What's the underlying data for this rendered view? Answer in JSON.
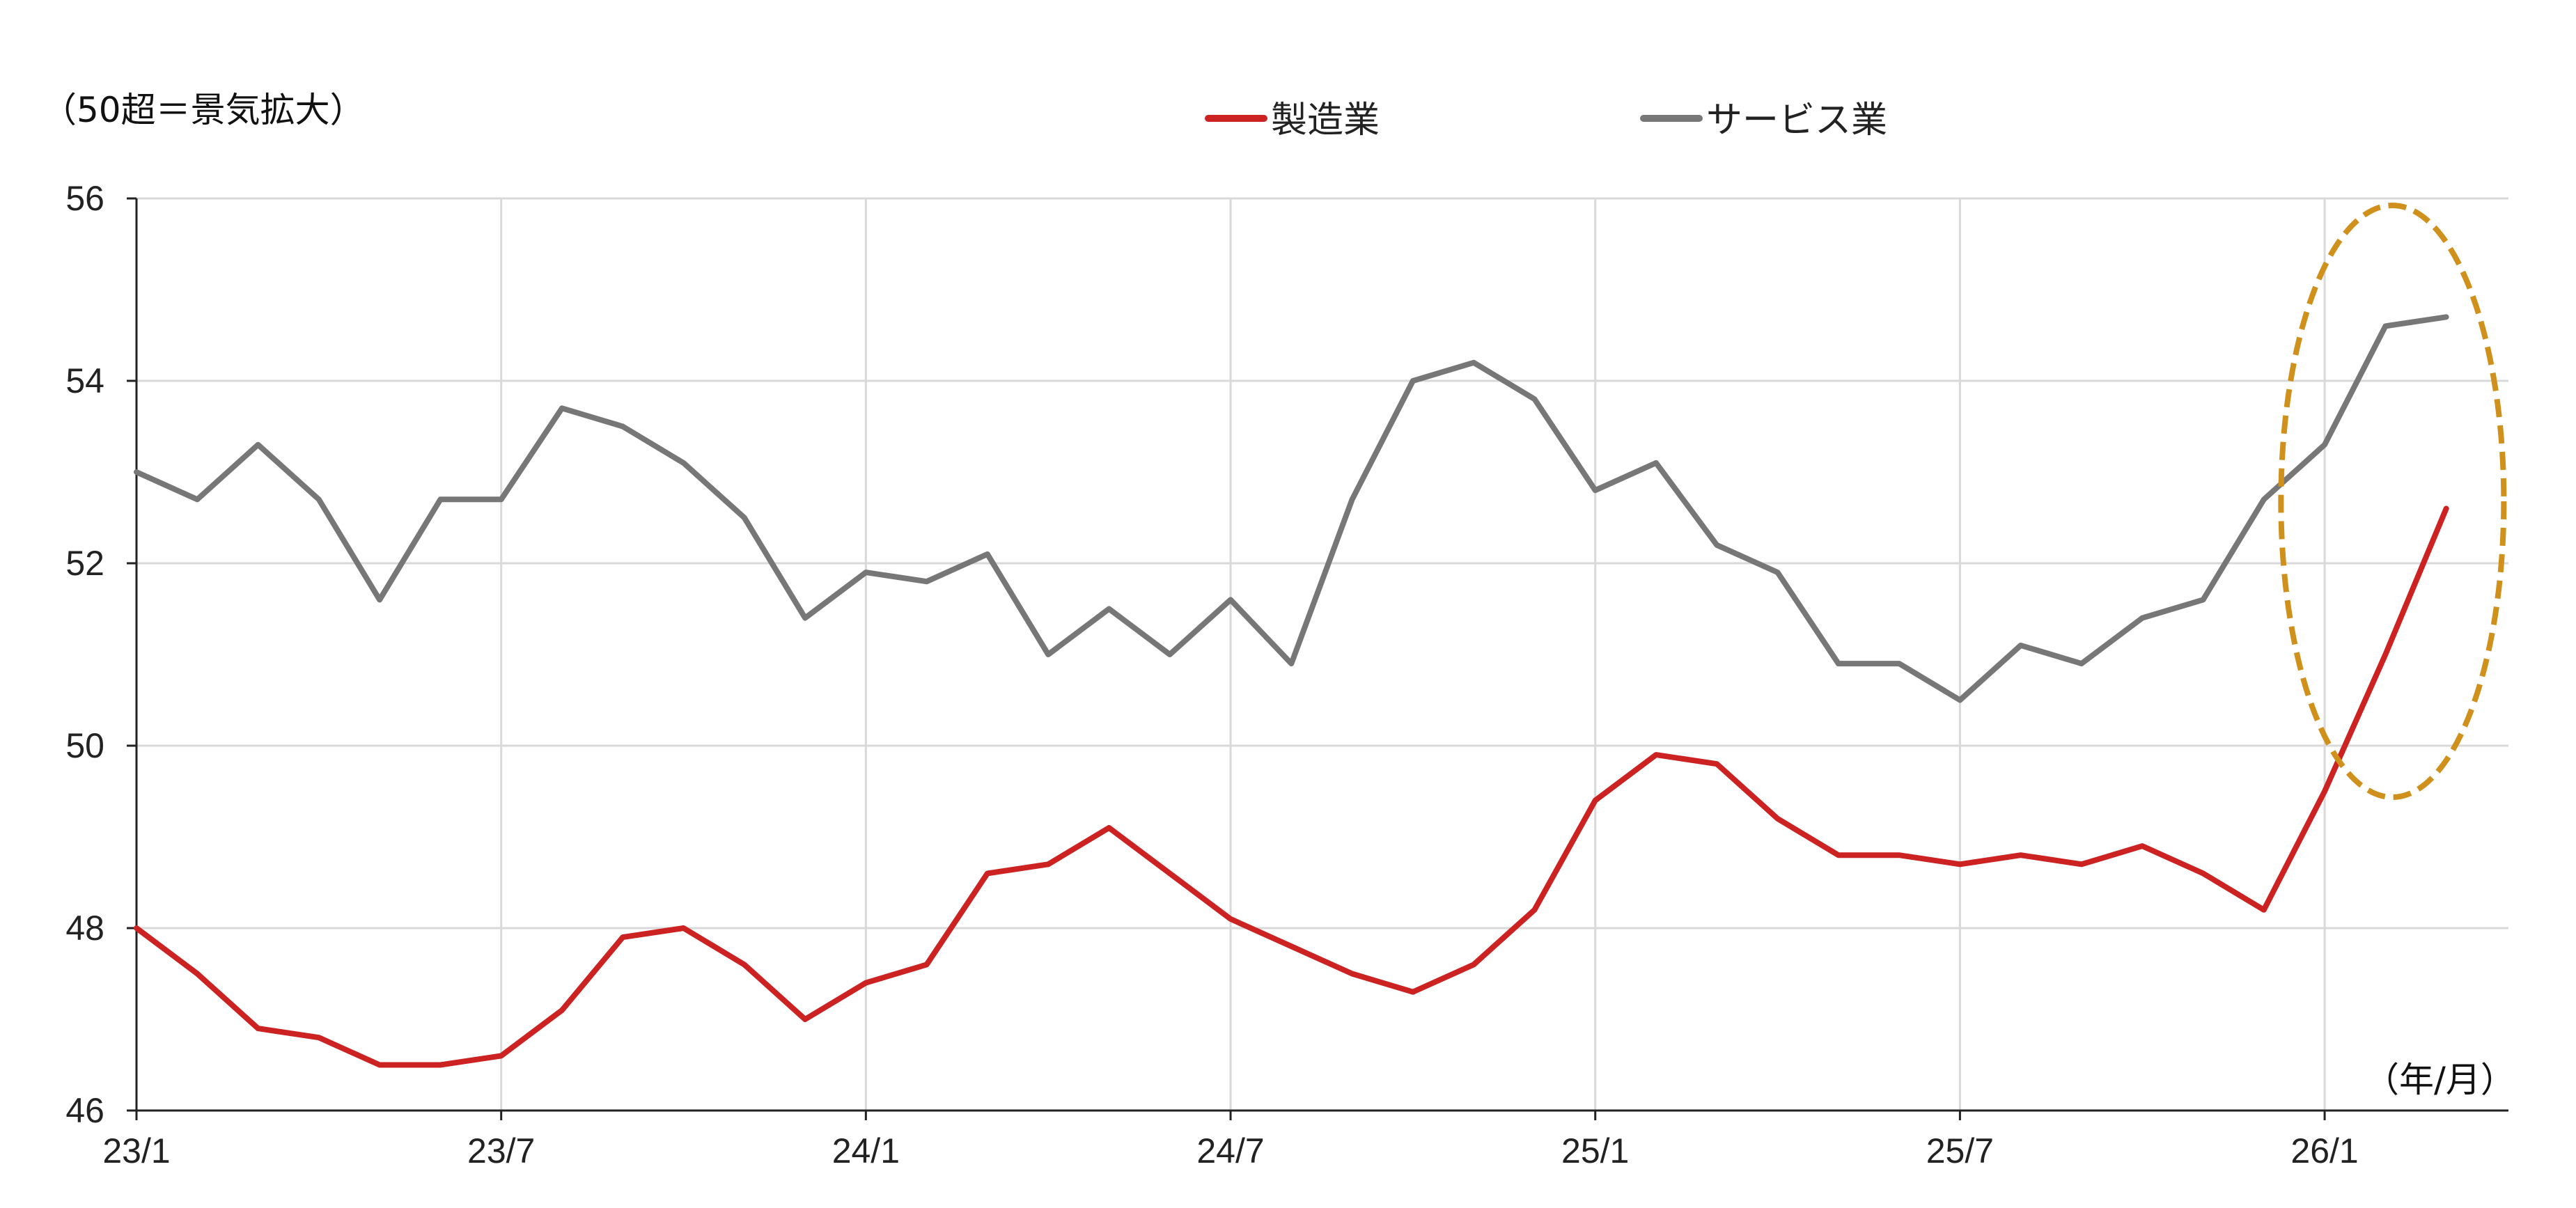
{
  "chart_data": {
    "type": "line",
    "title": "",
    "unit_note": "（50超＝景気拡大）",
    "xlabel": "（年/月）",
    "ylabel": "",
    "ylim": [
      46,
      56
    ],
    "yticks": [
      "46",
      "48",
      "50",
      "52",
      "54",
      "56"
    ],
    "xtick_labels": [
      "23/1",
      "23/7",
      "24/1",
      "24/7",
      "25/1",
      "25/7",
      "26/1"
    ],
    "grid": true,
    "legend_position": "top",
    "x": [
      "23/1",
      "23/2",
      "23/3",
      "23/4",
      "23/5",
      "23/6",
      "23/7",
      "23/8",
      "23/9",
      "23/10",
      "23/11",
      "23/12",
      "24/1",
      "24/2",
      "24/3",
      "24/4",
      "24/5",
      "24/6",
      "24/7",
      "24/8",
      "24/9",
      "24/10",
      "24/11",
      "24/12",
      "25/1",
      "25/2",
      "25/3",
      "25/4",
      "25/5",
      "25/6",
      "25/7",
      "25/8",
      "25/9",
      "25/10",
      "25/11",
      "25/12",
      "26/1",
      "26/2",
      "26/3"
    ],
    "series": [
      {
        "name": "製造業",
        "color": "#cc2222",
        "values": [
          48.0,
          47.5,
          46.9,
          46.8,
          46.5,
          46.5,
          46.6,
          47.1,
          47.9,
          48.0,
          47.6,
          47.0,
          47.4,
          47.6,
          48.6,
          48.7,
          49.1,
          48.6,
          48.1,
          47.8,
          47.5,
          47.3,
          47.6,
          48.2,
          49.4,
          49.9,
          49.8,
          49.2,
          48.8,
          48.8,
          48.7,
          48.8,
          48.7,
          48.9,
          48.6,
          48.2,
          49.5,
          51.0,
          52.6
        ]
      },
      {
        "name": "サービス業",
        "color": "#777777",
        "values": [
          53.0,
          52.7,
          53.3,
          52.7,
          51.6,
          52.7,
          52.7,
          53.7,
          53.5,
          53.1,
          52.5,
          51.4,
          51.9,
          51.8,
          52.1,
          51.0,
          51.5,
          51.0,
          51.6,
          50.9,
          52.7,
          54.0,
          54.2,
          53.8,
          52.8,
          53.1,
          52.2,
          51.9,
          50.9,
          50.9,
          50.5,
          51.1,
          50.9,
          51.4,
          51.6,
          52.7,
          53.3,
          54.6,
          54.7
        ]
      }
    ],
    "annotation": {
      "shape": "dashed-ellipse",
      "color": "#d0901c",
      "highlights": [
        "26/1",
        "26/2",
        "26/3"
      ]
    }
  }
}
